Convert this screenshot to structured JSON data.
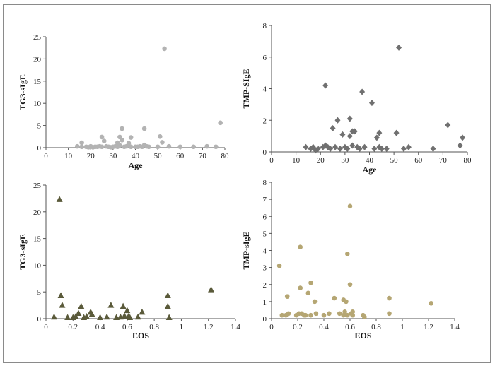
{
  "chart_data": [
    {
      "type": "scatter",
      "xlabel": "Age",
      "ylabel": "TG3-sIgE",
      "xlim": [
        0,
        80
      ],
      "ylim": [
        0,
        25
      ],
      "xticks": [
        0,
        10,
        20,
        30,
        40,
        50,
        60,
        70,
        80
      ],
      "yticks": [
        0,
        5,
        10,
        15,
        20,
        25
      ],
      "marker": "circle",
      "color": "#b3b3b3",
      "points": [
        [
          14,
          0.3
        ],
        [
          16,
          0.2
        ],
        [
          16,
          1.1
        ],
        [
          18,
          0.2
        ],
        [
          19,
          0.1
        ],
        [
          20,
          0.3
        ],
        [
          21,
          0.1
        ],
        [
          22,
          0.2
        ],
        [
          23,
          0.2
        ],
        [
          24,
          0.3
        ],
        [
          25,
          0.2
        ],
        [
          25,
          2.4
        ],
        [
          26,
          1.5
        ],
        [
          27,
          0.3
        ],
        [
          28,
          0.2
        ],
        [
          29,
          0.1
        ],
        [
          30,
          0.2
        ],
        [
          31,
          0.3
        ],
        [
          32,
          0.2
        ],
        [
          32,
          1.1
        ],
        [
          33,
          0.5
        ],
        [
          33,
          2.4
        ],
        [
          34,
          1.7
        ],
        [
          34,
          4.3
        ],
        [
          35,
          0.2
        ],
        [
          36,
          0.3
        ],
        [
          37,
          1.0
        ],
        [
          38,
          0.2
        ],
        [
          38,
          2.3
        ],
        [
          40,
          0.2
        ],
        [
          41,
          0.2
        ],
        [
          42,
          0.3
        ],
        [
          43,
          0.2
        ],
        [
          44,
          4.3
        ],
        [
          44,
          0.6
        ],
        [
          45,
          0.3
        ],
        [
          46,
          0.2
        ],
        [
          50,
          0.2
        ],
        [
          51,
          2.5
        ],
        [
          52,
          1.2
        ],
        [
          53,
          22.3
        ],
        [
          55,
          0.3
        ],
        [
          60,
          0.2
        ],
        [
          66,
          0.2
        ],
        [
          72,
          0.3
        ],
        [
          76,
          0.2
        ],
        [
          78,
          5.6
        ]
      ]
    },
    {
      "type": "scatter",
      "xlabel": "Age",
      "ylabel": "TMP-SIgE",
      "xlim": [
        0,
        80
      ],
      "ylim": [
        0,
        8
      ],
      "xticks": [
        0,
        10,
        20,
        30,
        40,
        50,
        60,
        70,
        80
      ],
      "yticks": [
        0,
        2,
        4,
        6,
        8
      ],
      "marker": "diamond",
      "color": "#707070",
      "points": [
        [
          14,
          0.3
        ],
        [
          16,
          0.2
        ],
        [
          17,
          0.3
        ],
        [
          18,
          0.1
        ],
        [
          19,
          0.2
        ],
        [
          21,
          0.3
        ],
        [
          22,
          0.4
        ],
        [
          22,
          4.2
        ],
        [
          23,
          0.3
        ],
        [
          24,
          0.2
        ],
        [
          25,
          1.5
        ],
        [
          26,
          0.3
        ],
        [
          27,
          2.0
        ],
        [
          28,
          0.2
        ],
        [
          29,
          1.1
        ],
        [
          30,
          0.3
        ],
        [
          31,
          0.2
        ],
        [
          32,
          1.0
        ],
        [
          32,
          2.1
        ],
        [
          33,
          1.3
        ],
        [
          33,
          0.4
        ],
        [
          34,
          1.3
        ],
        [
          35,
          0.3
        ],
        [
          36,
          0.2
        ],
        [
          37,
          3.8
        ],
        [
          38,
          0.3
        ],
        [
          41,
          3.1
        ],
        [
          42,
          0.2
        ],
        [
          43,
          0.9
        ],
        [
          44,
          1.2
        ],
        [
          44,
          0.3
        ],
        [
          45,
          0.2
        ],
        [
          47,
          0.2
        ],
        [
          51,
          1.2
        ],
        [
          52,
          6.6
        ],
        [
          54,
          0.2
        ],
        [
          56,
          0.3
        ],
        [
          66,
          0.2
        ],
        [
          72,
          1.7
        ],
        [
          77,
          0.4
        ],
        [
          78,
          0.9
        ]
      ]
    },
    {
      "type": "scatter",
      "xlabel": "EOS",
      "ylabel": "TG3-sIgE",
      "xlim": [
        0,
        1.4
      ],
      "ylim": [
        0,
        25
      ],
      "xticks": [
        0,
        0.2,
        0.4,
        0.6,
        0.8,
        1,
        1.2,
        1.4
      ],
      "yticks": [
        0,
        5,
        10,
        15,
        20,
        25
      ],
      "marker": "triangle",
      "color": "#5a5a3a",
      "points": [
        [
          0.06,
          0.3
        ],
        [
          0.1,
          22.3
        ],
        [
          0.11,
          4.3
        ],
        [
          0.12,
          2.5
        ],
        [
          0.16,
          0.2
        ],
        [
          0.2,
          0.2
        ],
        [
          0.22,
          0.4
        ],
        [
          0.24,
          1.0
        ],
        [
          0.26,
          2.3
        ],
        [
          0.28,
          0.2
        ],
        [
          0.3,
          0.4
        ],
        [
          0.33,
          1.2
        ],
        [
          0.34,
          0.8
        ],
        [
          0.4,
          0.2
        ],
        [
          0.45,
          0.3
        ],
        [
          0.48,
          2.5
        ],
        [
          0.52,
          0.2
        ],
        [
          0.55,
          0.3
        ],
        [
          0.57,
          2.3
        ],
        [
          0.58,
          0.5
        ],
        [
          0.6,
          1.5
        ],
        [
          0.61,
          0.4
        ],
        [
          0.62,
          0.2
        ],
        [
          0.68,
          0.3
        ],
        [
          0.71,
          1.2
        ],
        [
          0.9,
          4.3
        ],
        [
          0.9,
          2.3
        ],
        [
          0.91,
          0.2
        ],
        [
          1.22,
          5.4
        ]
      ]
    },
    {
      "type": "scatter",
      "xlabel": "EOS",
      "ylabel": "TMP-sIgE",
      "xlim": [
        0,
        1.4
      ],
      "ylim": [
        0,
        8
      ],
      "xticks": [
        0,
        0.2,
        0.4,
        0.6,
        0.8,
        1,
        1.2,
        1.4
      ],
      "yticks": [
        0,
        1,
        2,
        3,
        4,
        5,
        6,
        7,
        8
      ],
      "marker": "circle",
      "color": "#b5a673",
      "points": [
        [
          0.06,
          3.1
        ],
        [
          0.08,
          0.2
        ],
        [
          0.11,
          0.2
        ],
        [
          0.12,
          1.3
        ],
        [
          0.13,
          0.3
        ],
        [
          0.19,
          0.2
        ],
        [
          0.21,
          0.3
        ],
        [
          0.22,
          4.2
        ],
        [
          0.22,
          1.8
        ],
        [
          0.23,
          0.3
        ],
        [
          0.25,
          0.2
        ],
        [
          0.26,
          0.2
        ],
        [
          0.28,
          1.5
        ],
        [
          0.3,
          0.2
        ],
        [
          0.3,
          2.1
        ],
        [
          0.33,
          1.0
        ],
        [
          0.34,
          0.3
        ],
        [
          0.4,
          0.2
        ],
        [
          0.44,
          0.3
        ],
        [
          0.48,
          1.2
        ],
        [
          0.52,
          0.3
        ],
        [
          0.55,
          1.1
        ],
        [
          0.55,
          0.2
        ],
        [
          0.56,
          0.4
        ],
        [
          0.57,
          1.0
        ],
        [
          0.58,
          3.8
        ],
        [
          0.58,
          0.2
        ],
        [
          0.6,
          6.6
        ],
        [
          0.6,
          2.0
        ],
        [
          0.61,
          0.3
        ],
        [
          0.62,
          0.2
        ],
        [
          0.62,
          0.4
        ],
        [
          0.7,
          0.2
        ],
        [
          0.71,
          0.1
        ],
        [
          0.9,
          1.2
        ],
        [
          0.9,
          0.3
        ],
        [
          1.22,
          0.9
        ]
      ]
    }
  ]
}
